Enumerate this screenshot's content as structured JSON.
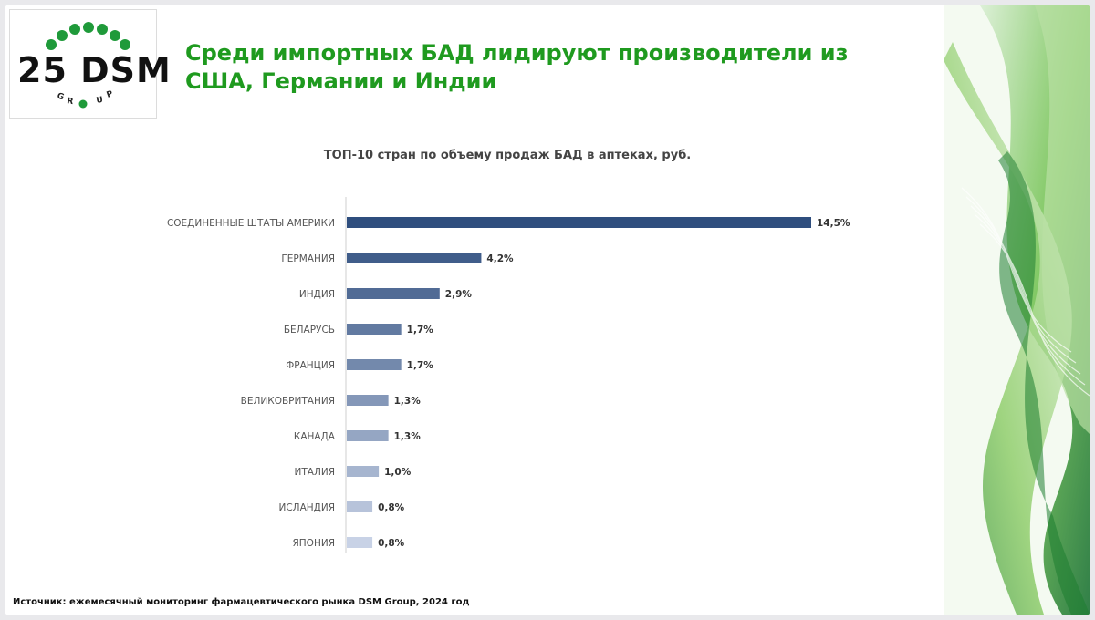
{
  "logo": {
    "text": "25 DSM",
    "group": "GROUP",
    "color": "#1f9a3a"
  },
  "title": "Среди импортных БАД лидируют производители из США, Германии и Индии",
  "source": "Источник: ежемесячный мониторинг фармацевтического рынка DSM Group, 2024 год",
  "colors": {
    "title": "#1f9a1f",
    "bar_start": "#2f4e7e",
    "bar_end": "#c8d2e6"
  },
  "chart_data": {
    "type": "bar",
    "orientation": "horizontal",
    "title": "ТОП-10 стран по объему продаж БАД в аптеках, руб.",
    "categories": [
      "СОЕДИНЕННЫЕ ШТАТЫ АМЕРИКИ",
      "ГЕРМАНИЯ",
      "ИНДИЯ",
      "БЕЛАРУСЬ",
      "ФРАНЦИЯ",
      "ВЕЛИКОБРИТАНИЯ",
      "КАНАДА",
      "ИТАЛИЯ",
      "ИСЛАНДИЯ",
      "ЯПОНИЯ"
    ],
    "values": [
      14.5,
      4.2,
      2.9,
      1.7,
      1.7,
      1.3,
      1.3,
      1.0,
      0.8,
      0.8
    ],
    "labels": [
      "14,5%",
      "4,2%",
      "2,9%",
      "1,7%",
      "1,7%",
      "1,3%",
      "1,3%",
      "1,0%",
      "0,8%",
      "0,8%"
    ],
    "unit": "%",
    "grid": false,
    "legend": "none"
  }
}
